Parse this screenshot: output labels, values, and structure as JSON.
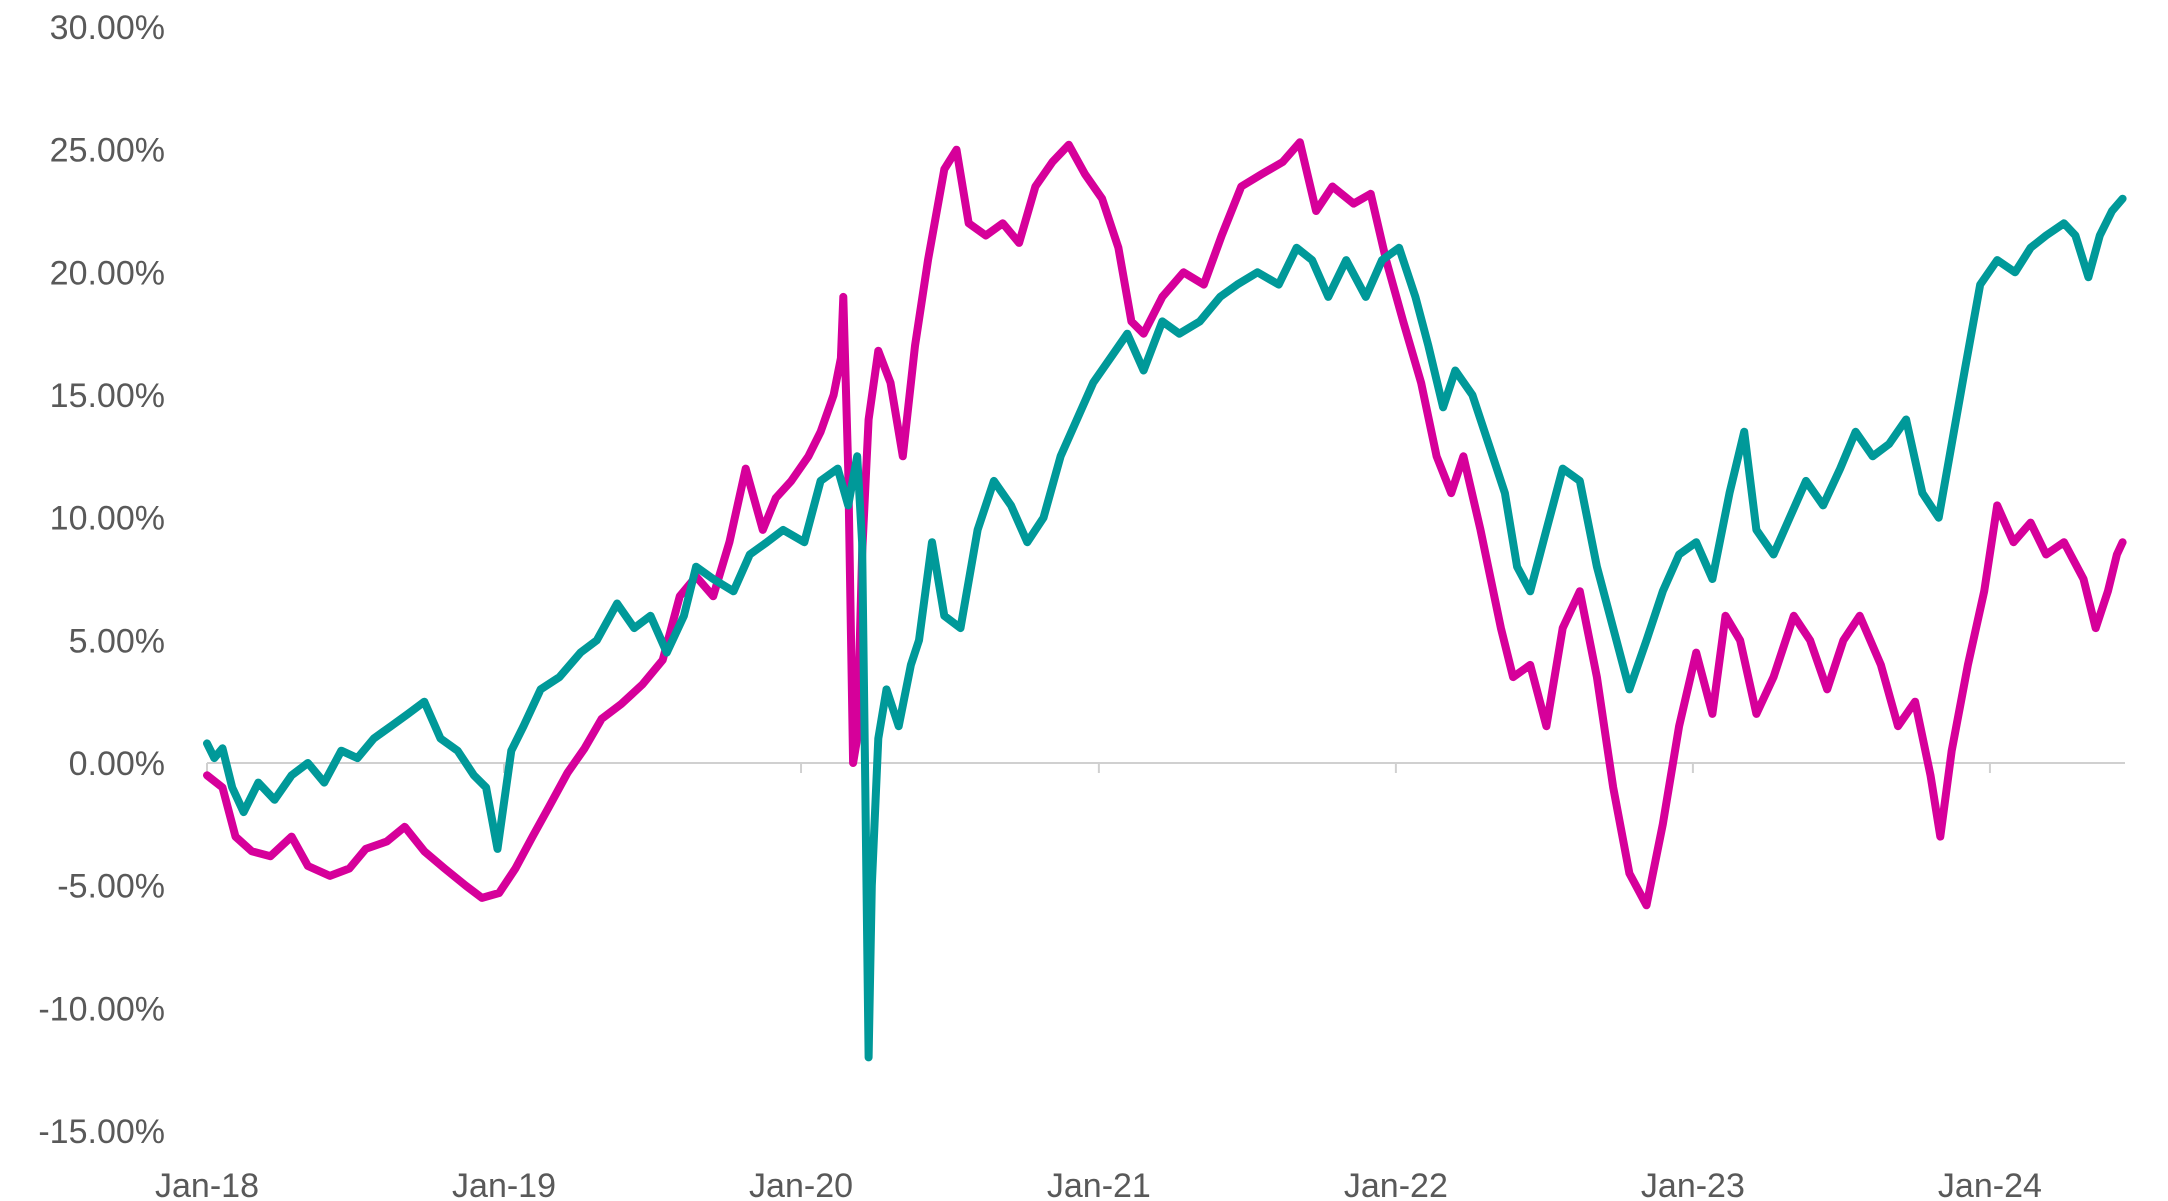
{
  "chart_data": {
    "type": "line",
    "title": "",
    "xlabel": "",
    "ylabel": "",
    "ylim": [
      -15,
      30
    ],
    "yticks": [
      30,
      25,
      20,
      15,
      10,
      5,
      0,
      -5,
      -10,
      -15
    ],
    "ytick_labels": [
      "30.00%",
      "25.00%",
      "20.00%",
      "15.00%",
      "10.00%",
      "5.00%",
      "0.00%",
      "-5.00%",
      "-10.00%",
      "-15.00%"
    ],
    "xlim": [
      "2018-01-01",
      "2024-06-15"
    ],
    "xticks": [
      "2018-01-01",
      "2019-01-01",
      "2020-01-01",
      "2021-01-01",
      "2022-01-01",
      "2023-01-01",
      "2024-01-01"
    ],
    "xtick_labels": [
      "Jan-18",
      "Jan-19",
      "Jan-20",
      "Jan-21",
      "Jan-22",
      "Jan-23",
      "Jan-24"
    ],
    "grid": false,
    "legend": "none",
    "series": [
      {
        "color": "#D6009A",
        "points": [
          [
            "2018-01-01",
            -0.5
          ],
          [
            "2018-01-20",
            -1.0
          ],
          [
            "2018-02-05",
            -3.0
          ],
          [
            "2018-02-25",
            -3.6
          ],
          [
            "2018-03-20",
            -3.8
          ],
          [
            "2018-04-15",
            -3.0
          ],
          [
            "2018-05-05",
            -4.2
          ],
          [
            "2018-06-01",
            -4.6
          ],
          [
            "2018-06-25",
            -4.3
          ],
          [
            "2018-07-15",
            -3.5
          ],
          [
            "2018-08-10",
            -3.2
          ],
          [
            "2018-09-01",
            -2.6
          ],
          [
            "2018-09-25",
            -3.6
          ],
          [
            "2018-10-20",
            -4.3
          ],
          [
            "2018-11-15",
            -5.0
          ],
          [
            "2018-12-05",
            -5.5
          ],
          [
            "2018-12-26",
            -5.3
          ],
          [
            "2019-01-15",
            -4.3
          ],
          [
            "2019-02-05",
            -3.0
          ],
          [
            "2019-02-25",
            -1.8
          ],
          [
            "2019-03-20",
            -0.4
          ],
          [
            "2019-04-10",
            0.6
          ],
          [
            "2019-05-01",
            1.8
          ],
          [
            "2019-05-25",
            2.4
          ],
          [
            "2019-06-20",
            3.2
          ],
          [
            "2019-07-15",
            4.2
          ],
          [
            "2019-08-05",
            6.8
          ],
          [
            "2019-08-25",
            7.6
          ],
          [
            "2019-09-15",
            6.8
          ],
          [
            "2019-10-05",
            9.0
          ],
          [
            "2019-10-25",
            12.0
          ],
          [
            "2019-11-15",
            9.5
          ],
          [
            "2019-12-01",
            10.8
          ],
          [
            "2019-12-20",
            11.5
          ],
          [
            "2020-01-10",
            12.5
          ],
          [
            "2020-01-25",
            13.5
          ],
          [
            "2020-02-10",
            15.0
          ],
          [
            "2020-02-19",
            16.5
          ],
          [
            "2020-02-22",
            19.0
          ],
          [
            "2020-02-28",
            12.0
          ],
          [
            "2020-03-05",
            0.0
          ],
          [
            "2020-03-10",
            1.0
          ],
          [
            "2020-03-16",
            8.5
          ],
          [
            "2020-03-24",
            14.0
          ],
          [
            "2020-04-05",
            16.8
          ],
          [
            "2020-04-20",
            15.5
          ],
          [
            "2020-05-05",
            12.5
          ],
          [
            "2020-05-20",
            17.0
          ],
          [
            "2020-06-05",
            20.5
          ],
          [
            "2020-06-25",
            24.2
          ],
          [
            "2020-07-10",
            25.0
          ],
          [
            "2020-07-25",
            22.0
          ],
          [
            "2020-08-15",
            21.5
          ],
          [
            "2020-09-05",
            22.0
          ],
          [
            "2020-09-25",
            21.2
          ],
          [
            "2020-10-15",
            23.5
          ],
          [
            "2020-11-05",
            24.5
          ],
          [
            "2020-11-25",
            25.2
          ],
          [
            "2020-12-15",
            24.0
          ],
          [
            "2021-01-05",
            23.0
          ],
          [
            "2021-01-25",
            21.0
          ],
          [
            "2021-02-10",
            18.0
          ],
          [
            "2021-02-25",
            17.5
          ],
          [
            "2021-03-20",
            19.0
          ],
          [
            "2021-04-15",
            20.0
          ],
          [
            "2021-05-10",
            19.5
          ],
          [
            "2021-06-01",
            21.5
          ],
          [
            "2021-06-25",
            23.5
          ],
          [
            "2021-07-20",
            24.0
          ],
          [
            "2021-08-15",
            24.5
          ],
          [
            "2021-09-05",
            25.3
          ],
          [
            "2021-09-25",
            22.5
          ],
          [
            "2021-10-15",
            23.5
          ],
          [
            "2021-11-10",
            22.8
          ],
          [
            "2021-12-01",
            23.2
          ],
          [
            "2021-12-20",
            20.5
          ],
          [
            "2022-01-10",
            18.0
          ],
          [
            "2022-02-01",
            15.5
          ],
          [
            "2022-02-20",
            12.5
          ],
          [
            "2022-03-10",
            11.0
          ],
          [
            "2022-03-25",
            12.5
          ],
          [
            "2022-04-15",
            9.5
          ],
          [
            "2022-05-10",
            5.5
          ],
          [
            "2022-05-25",
            3.5
          ],
          [
            "2022-06-15",
            4.0
          ],
          [
            "2022-07-05",
            1.5
          ],
          [
            "2022-07-25",
            5.5
          ],
          [
            "2022-08-15",
            7.0
          ],
          [
            "2022-09-05",
            3.5
          ],
          [
            "2022-09-25",
            -1.0
          ],
          [
            "2022-10-15",
            -4.5
          ],
          [
            "2022-11-05",
            -5.8
          ],
          [
            "2022-11-25",
            -2.5
          ],
          [
            "2022-12-15",
            1.5
          ],
          [
            "2023-01-05",
            4.5
          ],
          [
            "2023-01-25",
            2.0
          ],
          [
            "2023-02-10",
            6.0
          ],
          [
            "2023-02-28",
            5.0
          ],
          [
            "2023-03-20",
            2.0
          ],
          [
            "2023-04-10",
            3.5
          ],
          [
            "2023-05-05",
            6.0
          ],
          [
            "2023-05-25",
            5.0
          ],
          [
            "2023-06-15",
            3.0
          ],
          [
            "2023-07-05",
            5.0
          ],
          [
            "2023-07-25",
            6.0
          ],
          [
            "2023-08-20",
            4.0
          ],
          [
            "2023-09-10",
            1.5
          ],
          [
            "2023-10-01",
            2.5
          ],
          [
            "2023-10-20",
            -0.5
          ],
          [
            "2023-11-01",
            -3.0
          ],
          [
            "2023-11-15",
            0.5
          ],
          [
            "2023-12-05",
            4.0
          ],
          [
            "2023-12-25",
            7.0
          ],
          [
            "2024-01-10",
            10.5
          ],
          [
            "2024-01-30",
            9.0
          ],
          [
            "2024-02-20",
            9.8
          ],
          [
            "2024-03-10",
            8.5
          ],
          [
            "2024-04-01",
            9.0
          ],
          [
            "2024-04-25",
            7.5
          ],
          [
            "2024-05-10",
            5.5
          ],
          [
            "2024-05-25",
            7.0
          ],
          [
            "2024-06-05",
            8.5
          ],
          [
            "2024-06-12",
            9.0
          ]
        ]
      },
      {
        "color": "#009999",
        "points": [
          [
            "2018-01-01",
            0.8
          ],
          [
            "2018-01-10",
            0.2
          ],
          [
            "2018-01-20",
            0.6
          ],
          [
            "2018-02-01",
            -1.0
          ],
          [
            "2018-02-15",
            -2.0
          ],
          [
            "2018-03-05",
            -0.8
          ],
          [
            "2018-03-25",
            -1.5
          ],
          [
            "2018-04-15",
            -0.5
          ],
          [
            "2018-05-05",
            0.0
          ],
          [
            "2018-05-25",
            -0.8
          ],
          [
            "2018-06-15",
            0.5
          ],
          [
            "2018-07-05",
            0.2
          ],
          [
            "2018-07-25",
            1.0
          ],
          [
            "2018-08-15",
            1.5
          ],
          [
            "2018-09-05",
            2.0
          ],
          [
            "2018-09-25",
            2.5
          ],
          [
            "2018-10-15",
            1.0
          ],
          [
            "2018-11-05",
            0.5
          ],
          [
            "2018-11-25",
            -0.5
          ],
          [
            "2018-12-10",
            -1.0
          ],
          [
            "2018-12-24",
            -3.5
          ],
          [
            "2019-01-10",
            0.5
          ],
          [
            "2019-01-25",
            1.5
          ],
          [
            "2019-02-15",
            3.0
          ],
          [
            "2019-03-10",
            3.5
          ],
          [
            "2019-04-05",
            4.5
          ],
          [
            "2019-04-25",
            5.0
          ],
          [
            "2019-05-20",
            6.5
          ],
          [
            "2019-06-10",
            5.5
          ],
          [
            "2019-06-30",
            6.0
          ],
          [
            "2019-07-20",
            4.5
          ],
          [
            "2019-08-10",
            6.0
          ],
          [
            "2019-08-25",
            8.0
          ],
          [
            "2019-09-15",
            7.5
          ],
          [
            "2019-10-10",
            7.0
          ],
          [
            "2019-10-30",
            8.5
          ],
          [
            "2019-11-20",
            9.0
          ],
          [
            "2019-12-10",
            9.5
          ],
          [
            "2020-01-05",
            9.0
          ],
          [
            "2020-01-25",
            11.5
          ],
          [
            "2020-02-15",
            12.0
          ],
          [
            "2020-02-28",
            10.5
          ],
          [
            "2020-03-10",
            12.5
          ],
          [
            "2020-03-16",
            9.0
          ],
          [
            "2020-03-20",
            -1.0
          ],
          [
            "2020-03-24",
            -12.0
          ],
          [
            "2020-03-28",
            -5.0
          ],
          [
            "2020-04-05",
            1.0
          ],
          [
            "2020-04-15",
            3.0
          ],
          [
            "2020-04-30",
            1.5
          ],
          [
            "2020-05-15",
            4.0
          ],
          [
            "2020-05-25",
            5.0
          ],
          [
            "2020-06-10",
            9.0
          ],
          [
            "2020-06-25",
            6.0
          ],
          [
            "2020-07-15",
            5.5
          ],
          [
            "2020-08-05",
            9.5
          ],
          [
            "2020-08-25",
            11.5
          ],
          [
            "2020-09-15",
            10.5
          ],
          [
            "2020-10-05",
            9.0
          ],
          [
            "2020-10-25",
            10.0
          ],
          [
            "2020-11-15",
            12.5
          ],
          [
            "2020-12-05",
            14.0
          ],
          [
            "2020-12-25",
            15.5
          ],
          [
            "2021-01-15",
            16.5
          ],
          [
            "2021-02-05",
            17.5
          ],
          [
            "2021-02-25",
            16.0
          ],
          [
            "2021-03-20",
            18.0
          ],
          [
            "2021-04-10",
            17.5
          ],
          [
            "2021-05-05",
            18.0
          ],
          [
            "2021-05-30",
            19.0
          ],
          [
            "2021-06-20",
            19.5
          ],
          [
            "2021-07-15",
            20.0
          ],
          [
            "2021-08-10",
            19.5
          ],
          [
            "2021-09-01",
            21.0
          ],
          [
            "2021-09-20",
            20.5
          ],
          [
            "2021-10-10",
            19.0
          ],
          [
            "2021-11-01",
            20.5
          ],
          [
            "2021-11-25",
            19.0
          ],
          [
            "2021-12-15",
            20.5
          ],
          [
            "2022-01-05",
            21.0
          ],
          [
            "2022-01-25",
            19.0
          ],
          [
            "2022-02-10",
            17.0
          ],
          [
            "2022-02-28",
            14.5
          ],
          [
            "2022-03-15",
            16.0
          ],
          [
            "2022-04-05",
            15.0
          ],
          [
            "2022-04-25",
            13.0
          ],
          [
            "2022-05-15",
            11.0
          ],
          [
            "2022-05-30",
            8.0
          ],
          [
            "2022-06-15",
            7.0
          ],
          [
            "2022-07-05",
            9.5
          ],
          [
            "2022-07-25",
            12.0
          ],
          [
            "2022-08-15",
            11.5
          ],
          [
            "2022-09-05",
            8.0
          ],
          [
            "2022-09-25",
            5.5
          ],
          [
            "2022-10-15",
            3.0
          ],
          [
            "2022-11-05",
            5.0
          ],
          [
            "2022-11-25",
            7.0
          ],
          [
            "2022-12-15",
            8.5
          ],
          [
            "2023-01-05",
            9.0
          ],
          [
            "2023-01-25",
            7.5
          ],
          [
            "2023-02-15",
            11.0
          ],
          [
            "2023-03-05",
            13.5
          ],
          [
            "2023-03-20",
            9.5
          ],
          [
            "2023-04-10",
            8.5
          ],
          [
            "2023-04-30",
            10.0
          ],
          [
            "2023-05-20",
            11.5
          ],
          [
            "2023-06-10",
            10.5
          ],
          [
            "2023-07-01",
            12.0
          ],
          [
            "2023-07-20",
            13.5
          ],
          [
            "2023-08-10",
            12.5
          ],
          [
            "2023-08-30",
            13.0
          ],
          [
            "2023-09-20",
            14.0
          ],
          [
            "2023-10-10",
            11.0
          ],
          [
            "2023-10-30",
            10.0
          ],
          [
            "2023-11-15",
            13.0
          ],
          [
            "2023-12-01",
            16.0
          ],
          [
            "2023-12-20",
            19.5
          ],
          [
            "2024-01-10",
            20.5
          ],
          [
            "2024-02-01",
            20.0
          ],
          [
            "2024-02-20",
            21.0
          ],
          [
            "2024-03-10",
            21.5
          ],
          [
            "2024-04-01",
            22.0
          ],
          [
            "2024-04-15",
            21.5
          ],
          [
            "2024-05-01",
            19.8
          ],
          [
            "2024-05-15",
            21.5
          ],
          [
            "2024-05-30",
            22.5
          ],
          [
            "2024-06-12",
            23.0
          ]
        ]
      }
    ]
  }
}
